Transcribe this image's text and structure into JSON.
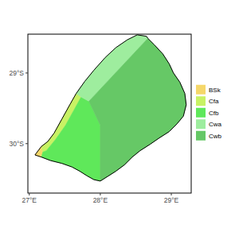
{
  "chart_data": {
    "type": "map",
    "xlim": [
      26.98,
      29.28
    ],
    "ylim": [
      -30.7,
      -28.45
    ],
    "xticks": [
      {
        "value": 27,
        "label": "27°E"
      },
      {
        "value": 28,
        "label": "28°E"
      },
      {
        "value": 29,
        "label": "29°E"
      }
    ],
    "yticks": [
      {
        "value": -30,
        "label": "30°S"
      },
      {
        "value": -29,
        "label": "29°S"
      }
    ],
    "legend": "right",
    "border": [
      [
        27.08,
        -30.16
      ],
      [
        27.17,
        -30.04
      ],
      [
        27.26,
        -29.97
      ],
      [
        27.35,
        -29.85
      ],
      [
        27.46,
        -29.65
      ],
      [
        27.57,
        -29.45
      ],
      [
        27.66,
        -29.29
      ],
      [
        27.78,
        -29.12
      ],
      [
        27.91,
        -28.96
      ],
      [
        28.07,
        -28.78
      ],
      [
        28.22,
        -28.64
      ],
      [
        28.38,
        -28.53
      ],
      [
        28.52,
        -28.46
      ],
      [
        28.65,
        -28.48
      ],
      [
        28.67,
        -28.51
      ],
      [
        28.76,
        -28.6
      ],
      [
        28.88,
        -28.73
      ],
      [
        28.97,
        -28.87
      ],
      [
        29.03,
        -29.0
      ],
      [
        29.12,
        -29.13
      ],
      [
        29.19,
        -29.29
      ],
      [
        29.21,
        -29.45
      ],
      [
        29.17,
        -29.61
      ],
      [
        29.08,
        -29.72
      ],
      [
        28.97,
        -29.83
      ],
      [
        28.83,
        -29.92
      ],
      [
        28.7,
        -30.01
      ],
      [
        28.56,
        -30.1
      ],
      [
        28.45,
        -30.19
      ],
      [
        28.34,
        -30.3
      ],
      [
        28.22,
        -30.39
      ],
      [
        28.11,
        -30.46
      ],
      [
        28.0,
        -30.53
      ],
      [
        27.91,
        -30.51
      ],
      [
        27.82,
        -30.46
      ],
      [
        27.71,
        -30.39
      ],
      [
        27.6,
        -30.33
      ],
      [
        27.46,
        -30.28
      ],
      [
        27.3,
        -30.24
      ],
      [
        27.17,
        -30.19
      ]
    ],
    "series": [
      {
        "name": "BSk",
        "color": "#f5d76a",
        "polygon": [
          [
            27.08,
            -30.16
          ],
          [
            27.17,
            -30.04
          ],
          [
            27.19,
            -30.12
          ],
          [
            27.17,
            -30.19
          ]
        ]
      },
      {
        "name": "Cfa",
        "color": "#c8f264",
        "polygon": [
          [
            27.17,
            -30.04
          ],
          [
            27.26,
            -29.97
          ],
          [
            27.35,
            -29.85
          ],
          [
            27.46,
            -29.65
          ],
          [
            27.57,
            -29.45
          ],
          [
            27.66,
            -29.29
          ],
          [
            27.73,
            -29.34
          ],
          [
            27.62,
            -29.54
          ],
          [
            27.51,
            -29.74
          ],
          [
            27.37,
            -29.94
          ],
          [
            27.24,
            -30.1
          ],
          [
            27.19,
            -30.12
          ]
        ]
      },
      {
        "name": "Cfb",
        "color": "#5fe85a",
        "polygon": [
          [
            27.84,
            -29.4
          ],
          [
            28.0,
            -29.74
          ],
          [
            28.0,
            -30.53
          ],
          [
            27.91,
            -30.51
          ],
          [
            27.82,
            -30.46
          ],
          [
            27.71,
            -30.39
          ],
          [
            27.6,
            -30.33
          ],
          [
            27.46,
            -30.28
          ],
          [
            27.3,
            -30.24
          ],
          [
            27.17,
            -30.19
          ],
          [
            27.19,
            -30.12
          ],
          [
            27.24,
            -30.1
          ],
          [
            27.37,
            -29.94
          ],
          [
            27.51,
            -29.74
          ],
          [
            27.62,
            -29.54
          ],
          [
            27.73,
            -29.34
          ]
        ]
      },
      {
        "name": "Cwa",
        "color": "#9eed9e",
        "polygon": [
          [
            27.66,
            -29.29
          ],
          [
            27.78,
            -29.12
          ],
          [
            27.91,
            -28.96
          ],
          [
            28.07,
            -28.78
          ],
          [
            28.22,
            -28.64
          ],
          [
            28.38,
            -28.53
          ],
          [
            28.52,
            -28.46
          ],
          [
            28.65,
            -28.48
          ],
          [
            28.67,
            -28.51
          ],
          [
            27.84,
            -29.4
          ],
          [
            27.73,
            -29.34
          ]
        ]
      },
      {
        "name": "Cwb",
        "color": "#66c866",
        "polygon": [
          [
            28.67,
            -28.51
          ],
          [
            28.76,
            -28.6
          ],
          [
            28.88,
            -28.73
          ],
          [
            28.97,
            -28.87
          ],
          [
            29.03,
            -29.0
          ],
          [
            29.12,
            -29.13
          ],
          [
            29.19,
            -29.29
          ],
          [
            29.21,
            -29.45
          ],
          [
            29.17,
            -29.61
          ],
          [
            29.08,
            -29.72
          ],
          [
            28.97,
            -29.83
          ],
          [
            28.83,
            -29.92
          ],
          [
            28.7,
            -30.01
          ],
          [
            28.56,
            -30.1
          ],
          [
            28.45,
            -30.19
          ],
          [
            28.34,
            -30.3
          ],
          [
            28.22,
            -30.39
          ],
          [
            28.11,
            -30.46
          ],
          [
            28.0,
            -30.53
          ],
          [
            28.0,
            -29.74
          ],
          [
            27.84,
            -29.4
          ]
        ]
      }
    ]
  }
}
